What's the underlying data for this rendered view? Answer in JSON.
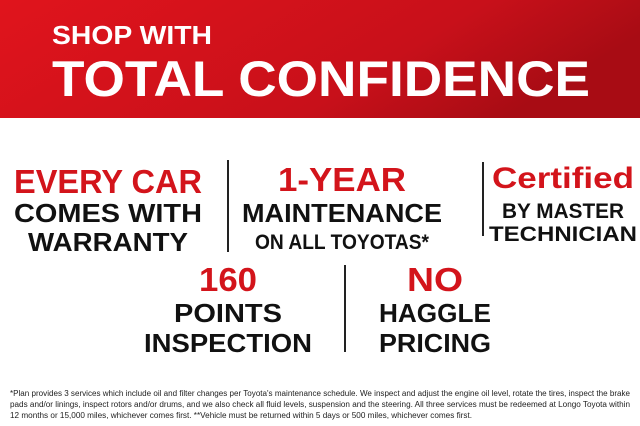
{
  "header": {
    "line1": "SHOP WITH",
    "line2": "TOTAL CONFIDENCE"
  },
  "features": [
    {
      "headline": "EVERY CAR",
      "line1": "COMES WITH",
      "line2": "WARRANTY"
    },
    {
      "headline": "1-YEAR",
      "line1": "MAINTENANCE",
      "line2": "ON ALL TOYOTAS*"
    },
    {
      "headline": "Certified",
      "line1": "BY MASTER",
      "line2": "TECHNICIAN"
    },
    {
      "headline": "160",
      "line1": "POINTS",
      "line2": "INSPECTION"
    },
    {
      "headline": "NO",
      "line1": "HAGGLE",
      "line2": "PRICING"
    }
  ],
  "footnote": [
    "*Plan provides 3 services which include oil and filter changes per Toyota's maintenance schedule. We inspect and adjust the engine oil level, rotate the tires, inspect the brake",
    "pads and/or linings, inspect rotors and/or drums, and we also check all fluid levels, suspension and the steering.  All three services must be redeemed at Longo Toyota within",
    "12 months or 15,000 miles, whichever comes first. **Vehicle must be returned within 5 days or 500 miles, whichever comes first."
  ]
}
